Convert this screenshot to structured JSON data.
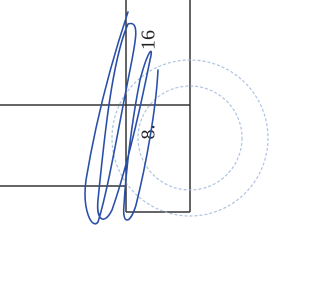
{
  "table": {
    "cells": [
      "16",
      "8."
    ]
  }
}
